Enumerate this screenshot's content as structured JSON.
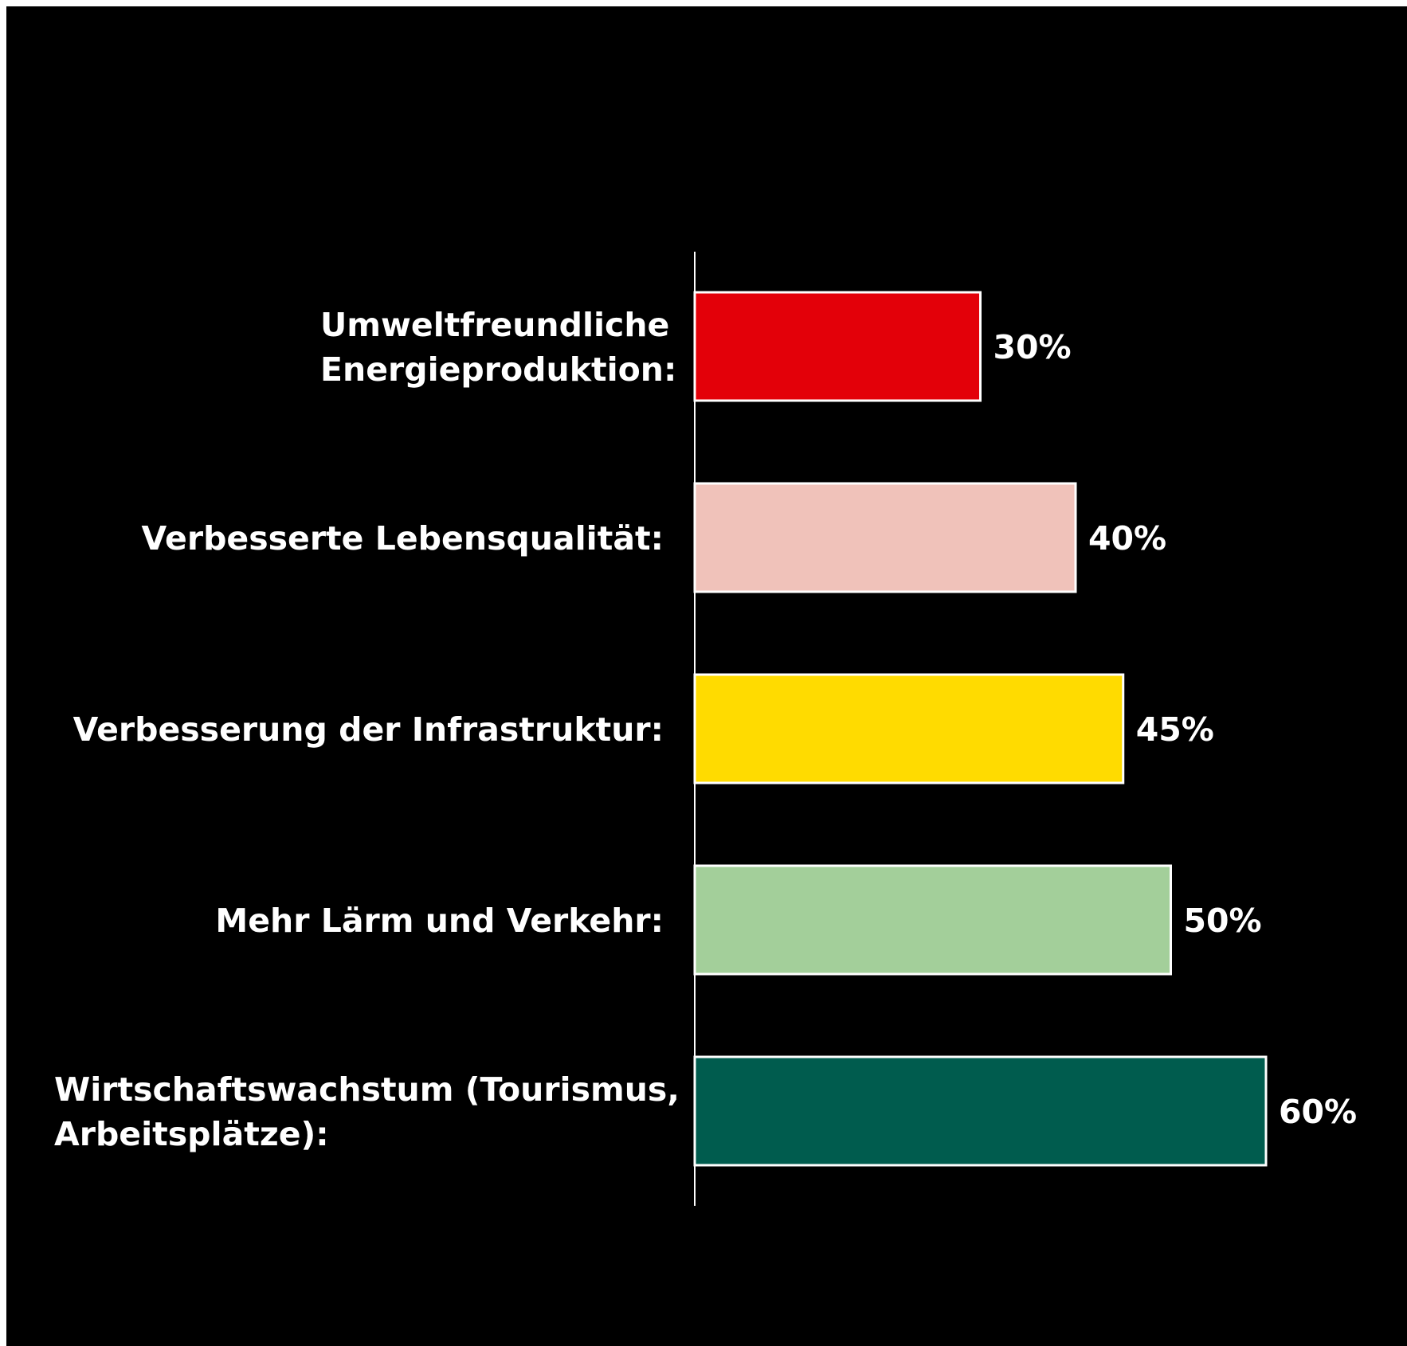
{
  "chart_data": {
    "type": "bar",
    "orientation": "horizontal",
    "categories": [
      [
        "Umweltfreundliche",
        "Energieproduktion:"
      ],
      [
        "Verbesserte Lebensqualität:"
      ],
      [
        "Verbesserung der Infrastruktur:"
      ],
      [
        "Mehr Lärm und Verkehr:"
      ],
      [
        "Wirtschaftswachstum (Tourismus,",
        "Arbeitsplätze):"
      ]
    ],
    "values": [
      30,
      40,
      45,
      50,
      60
    ],
    "value_labels": [
      "30%",
      "40%",
      "45%",
      "50%",
      "60%"
    ],
    "bar_colors": [
      "#e30009",
      "#f0c2ba",
      "#ffdb00",
      "#a3cf9a",
      "#005c4e"
    ],
    "value_unit": "%",
    "grid": false,
    "legend": "none",
    "background": "#000000",
    "bar_outline_color": "#ffffff",
    "text_color": "#ffffff"
  }
}
